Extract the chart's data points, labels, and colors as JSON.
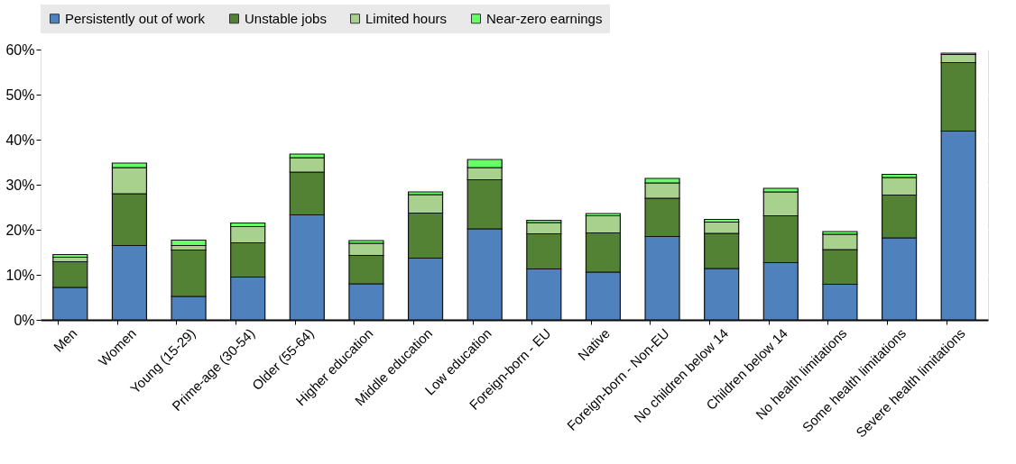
{
  "chart_data": {
    "type": "bar",
    "stacked": true,
    "legend": "top",
    "grid": true,
    "categories": [
      "Men",
      "Women",
      "Young (15-29)",
      "Prime-age (30-54)",
      "Older (55-64)",
      "Higher education",
      "Middle education",
      "Low education",
      "Foreign-born - EU",
      "Native",
      "Foreign-born - Non-EU",
      "No children below 14",
      "Children below 14",
      "No health limitations",
      "Some health limitations",
      "Severe health limitations"
    ],
    "ylim": [
      0,
      60
    ],
    "yticks": [
      {
        "value": 0,
        "label": "0%"
      },
      {
        "value": 10,
        "label": "10%"
      },
      {
        "value": 20,
        "label": "20%"
      },
      {
        "value": 30,
        "label": "30%"
      },
      {
        "value": 40,
        "label": "40%"
      },
      {
        "value": 50,
        "label": "50%"
      },
      {
        "value": 60,
        "label": "60%"
      }
    ],
    "series": [
      {
        "name": "Persistently out of work",
        "color": "#4f81bd",
        "values": [
          7.2,
          16.5,
          5.2,
          9.5,
          23.3,
          8.0,
          13.7,
          20.2,
          11.3,
          10.6,
          18.5,
          11.4,
          12.7,
          7.9,
          18.2,
          41.9
        ]
      },
      {
        "name": "Unstable jobs",
        "color": "#548235",
        "values": [
          5.7,
          11.5,
          10.3,
          7.6,
          9.5,
          6.3,
          10.0,
          10.9,
          7.8,
          8.7,
          8.5,
          7.8,
          10.4,
          7.7,
          9.5,
          15.2
        ]
      },
      {
        "name": "Limited hours",
        "color": "#a9d18e",
        "values": [
          1.0,
          5.8,
          1.0,
          3.6,
          3.2,
          2.7,
          4.1,
          2.7,
          2.5,
          3.8,
          3.4,
          2.5,
          5.3,
          3.4,
          3.9,
          1.8
        ]
      },
      {
        "name": "Near-zero earnings",
        "color": "#66ff66",
        "values": [
          0.6,
          1.0,
          1.2,
          0.8,
          0.8,
          0.6,
          0.6,
          1.8,
          0.5,
          0.5,
          1.0,
          0.6,
          0.8,
          0.6,
          0.7,
          0.3
        ]
      }
    ]
  }
}
